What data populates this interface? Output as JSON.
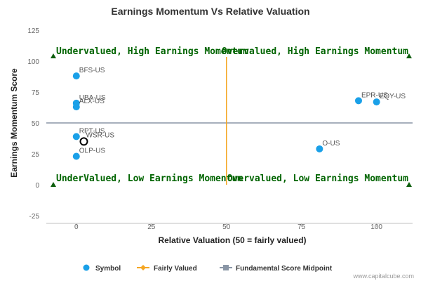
{
  "chart_data": {
    "type": "scatter",
    "title": "Earnings Momentum Vs Relative Valuation",
    "xlabel": "Relative Valuation (50 = fairly valued)",
    "ylabel": "Earnings Momentum Score",
    "xlim": [
      -10,
      112
    ],
    "ylim": [
      -25,
      125
    ],
    "x_ticks": [
      0,
      25,
      50,
      75,
      100
    ],
    "y_ticks": [
      -25,
      0,
      25,
      50,
      75,
      100,
      125
    ],
    "points": [
      {
        "label": "BFS-US",
        "x": 0,
        "y": 88
      },
      {
        "label": "UBA-US",
        "x": 0,
        "y": 66
      },
      {
        "label": "ALX-US",
        "x": 0,
        "y": 63
      },
      {
        "label": "RPT-US",
        "x": 0,
        "y": 39
      },
      {
        "label": "OLP-US",
        "x": 0,
        "y": 23
      },
      {
        "label": "EPR-US",
        "x": 94,
        "y": 68
      },
      {
        "label": "EQY-US",
        "x": 100,
        "y": 67
      },
      {
        "label": "O-US",
        "x": 81,
        "y": 29
      }
    ],
    "highlighted_point": {
      "label": "WSR-US",
      "x": 2.5,
      "y": 35
    },
    "fairly_valued_x": 50,
    "midpoint_y": 50,
    "quadrant_labels": [
      "Undervalued, High Earnings Momentum",
      "Overvalued, High Earnings Momentum",
      "UnderValued, Low Earnings Momentum",
      "Overvalued, Low Earnings Momentum"
    ],
    "legend": [
      "Symbol",
      "Fairly Valued",
      "Fundamental Score Midpoint"
    ],
    "legend_position": "bottom",
    "grid": false
  },
  "colors": {
    "symbol": "#1aa0e8",
    "fairly_valued": "#f5a623",
    "midpoint": "#8a96a6",
    "quadrant_text": "#006400",
    "triangle": "#0d5e0d"
  },
  "credit": "www.capitalcube.com"
}
